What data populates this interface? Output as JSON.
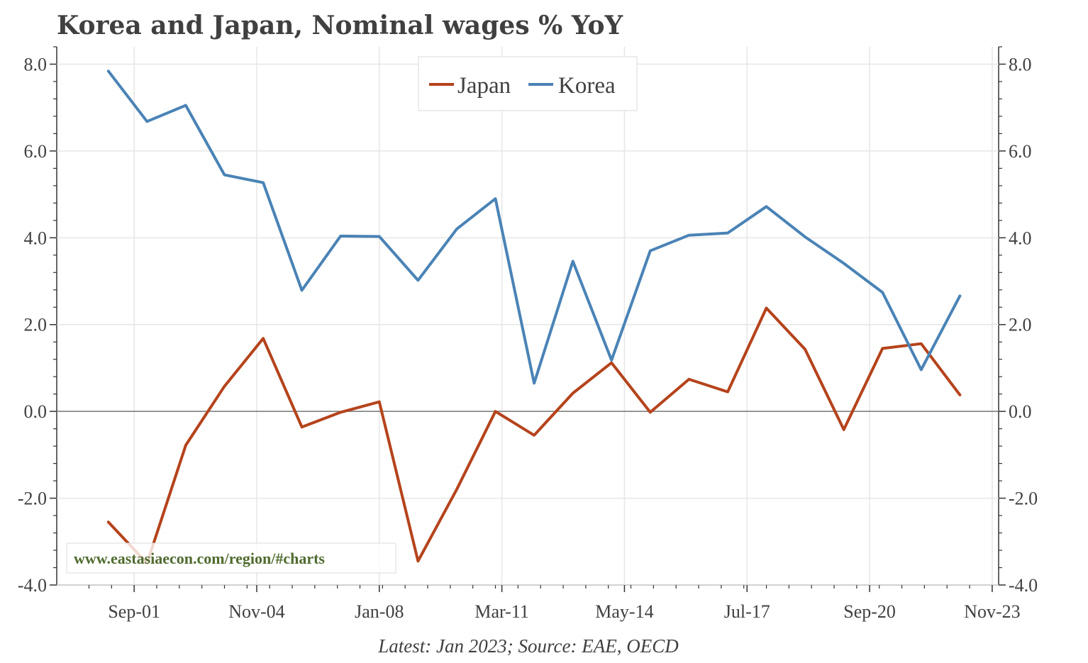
{
  "title": "Korea and Japan, Nominal wages % YoY",
  "footnote": "Latest: Jan 2023; Source: EAE, OECD",
  "watermark": "www.eastasiaecon.com/region/#charts",
  "chart_data": {
    "type": "line",
    "title": "Korea and Japan, Nominal wages % YoY",
    "xlabel": "",
    "ylabel": "",
    "x_tick_labels": [
      "Sep-01",
      "Nov-04",
      "Jan-08",
      "Mar-11",
      "May-14",
      "Jul-17",
      "Sep-20",
      "Nov-23"
    ],
    "x_tick_dates": [
      "2001-09",
      "2004-11",
      "2008-01",
      "2011-03",
      "2014-05",
      "2017-07",
      "2020-09",
      "2023-11"
    ],
    "xlim": [
      "1999-09",
      "2024-01"
    ],
    "ylim": [
      -4.0,
      8.4
    ],
    "y_ticks": [
      -4.0,
      -2.0,
      0.0,
      2.0,
      4.0,
      6.0,
      8.0
    ],
    "y_tick_labels": [
      "-4.0",
      "-2.0",
      "0.0",
      "2.0",
      "4.0",
      "6.0",
      "8.0"
    ],
    "y_axis_sides": [
      "left",
      "right"
    ],
    "grid": true,
    "zero_line": true,
    "legend_position": "top-center",
    "x": [
      "2001-01",
      "2002-01",
      "2003-01",
      "2004-01",
      "2005-01",
      "2006-01",
      "2007-01",
      "2008-01",
      "2009-01",
      "2010-01",
      "2011-01",
      "2012-01",
      "2013-01",
      "2014-01",
      "2015-01",
      "2016-01",
      "2017-01",
      "2018-01",
      "2019-01",
      "2020-01",
      "2021-01",
      "2022-01",
      "2023-01"
    ],
    "series": [
      {
        "name": "Japan",
        "color": "#b5431b",
        "values": [
          -2.55,
          -3.5,
          -0.78,
          0.58,
          1.68,
          -0.36,
          -0.02,
          0.22,
          -3.45,
          -1.8,
          0.0,
          -0.55,
          0.42,
          1.12,
          -0.02,
          0.74,
          0.45,
          2.38,
          1.43,
          -0.42,
          1.45,
          1.56,
          0.38
        ]
      },
      {
        "name": "Korea",
        "color": "#4a83b6",
        "values": [
          7.84,
          6.68,
          7.05,
          5.45,
          5.27,
          2.79,
          4.04,
          4.03,
          3.02,
          4.2,
          4.9,
          0.65,
          3.46,
          1.18,
          3.7,
          4.06,
          4.11,
          4.72,
          4.02,
          3.41,
          2.74,
          0.96,
          2.66
        ]
      }
    ]
  },
  "colors": {
    "japan": "#b5431b",
    "korea": "#4a83b6",
    "text": "#404040",
    "grid": "#e6e6e6",
    "watermark": "#4f6b2f"
  }
}
